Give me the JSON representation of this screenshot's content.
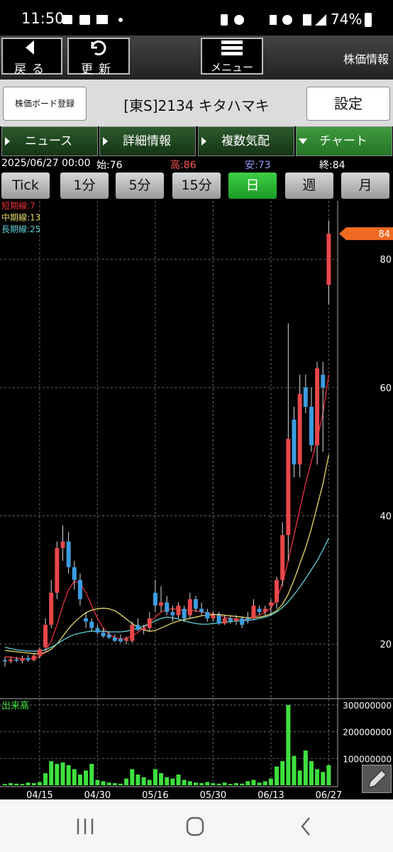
{
  "status_bar": {
    "time": "11:50",
    "battery": "74%"
  },
  "header": {
    "back": "戻る",
    "refresh": "更新",
    "menu": "メニュー",
    "section": "株価情報"
  },
  "stock_bar": {
    "register": "株価ボード登録",
    "name": "[東S]2134 キタハマキ",
    "settings": "設定"
  },
  "tabs": [
    "ニュース",
    "詳細情報",
    "複数気配",
    "チャート"
  ],
  "info": {
    "datetime": "2025/06/27 00:00",
    "open": "始:76",
    "high": "高:86",
    "low": "安:73",
    "close": "終:84"
  },
  "timeframes": [
    "Tick",
    "1分",
    "5分",
    "15分",
    "日",
    "週",
    "月"
  ],
  "chart_data": {
    "type": "candlestick",
    "categories": [
      null,
      null,
      null,
      null,
      null,
      null,
      "04/15",
      null,
      null,
      null,
      null,
      null,
      null,
      null,
      null,
      null,
      "04/30",
      null,
      null,
      null,
      null,
      null,
      null,
      null,
      null,
      null,
      "05/16",
      null,
      null,
      null,
      null,
      null,
      null,
      null,
      null,
      null,
      "05/30",
      null,
      null,
      null,
      null,
      null,
      null,
      null,
      null,
      null,
      "06/13",
      null,
      null,
      null,
      null,
      null,
      null,
      null,
      null,
      null,
      "06/27"
    ],
    "open": [
      17.5,
      17.3,
      17.6,
      17.4,
      17.8,
      17.5,
      18.2,
      19.5,
      23,
      28,
      35,
      36,
      32,
      30,
      24,
      23.5,
      22.5,
      21.8,
      21.5,
      21,
      20.8,
      20.5,
      20.5,
      23,
      22.2,
      22.5,
      28,
      26,
      26.5,
      25,
      24.5,
      25.5,
      24.5,
      27,
      25.5,
      25,
      24,
      24.5,
      23.2,
      24,
      23.6,
      24,
      24,
      24,
      25.5,
      25,
      26,
      26.5,
      30,
      37,
      55,
      48,
      60,
      57,
      51,
      62,
      76
    ],
    "high": [
      18,
      18,
      18,
      18.2,
      18.3,
      18.5,
      19.5,
      24,
      30,
      36,
      38.5,
      37.5,
      33,
      31,
      25,
      24,
      23,
      22.5,
      22,
      21.5,
      21.5,
      21.2,
      23.5,
      24,
      23,
      25,
      30,
      29,
      27.5,
      26,
      26.5,
      26,
      28,
      27.5,
      26.5,
      25.5,
      25,
      25,
      24.5,
      24.5,
      24.5,
      24.3,
      25,
      27,
      26,
      26,
      27,
      30.5,
      39,
      70,
      57,
      62,
      62,
      60,
      64,
      64,
      86
    ],
    "low": [
      16.5,
      17,
      17.2,
      17,
      17.2,
      17.3,
      17.8,
      19,
      22.5,
      27,
      33,
      31,
      28.5,
      26,
      22.5,
      22,
      21.5,
      21,
      20.8,
      20.3,
      20.2,
      20,
      20.2,
      22,
      21.5,
      22,
      25,
      25,
      24.5,
      23.5,
      24,
      23.5,
      24,
      25,
      24.5,
      23.5,
      23.5,
      23,
      23,
      23.2,
      23,
      22.5,
      23.2,
      23.8,
      24.5,
      24.5,
      24.5,
      25.5,
      29,
      33,
      46,
      46,
      56,
      50,
      48,
      50,
      73
    ],
    "close": [
      17.3,
      17.6,
      17.4,
      17.8,
      17.5,
      18.2,
      19.2,
      23,
      28,
      35,
      36,
      32,
      30,
      27,
      23.5,
      22.5,
      21.8,
      21.2,
      21,
      20.5,
      20.4,
      20.8,
      23,
      22.2,
      22.5,
      24,
      26,
      26.5,
      25,
      24.5,
      26,
      24,
      27,
      25.5,
      25,
      24,
      24.5,
      23.2,
      24,
      23.6,
      24,
      23,
      23.7,
      26,
      25,
      25.5,
      26.5,
      30,
      37,
      52,
      48,
      59,
      57,
      51,
      63,
      60,
      84
    ],
    "up_color": "#e8474a",
    "down_color": "#3b9ce0",
    "ylim": [
      11.6,
      89.1
    ],
    "yticks": [
      20,
      40,
      60,
      80
    ],
    "grid": true,
    "current_price": 84,
    "moving_averages": [
      {
        "name": "短期線:7",
        "color": "#e8323c",
        "values": [
          18,
          18,
          17.8,
          17.7,
          17.7,
          17.8,
          18,
          18.8,
          20.5,
          23,
          26,
          28.5,
          29.8,
          29.5,
          28,
          26,
          24,
          22.5,
          21.5,
          21,
          20.8,
          20.9,
          21.3,
          21.8,
          22.5,
          23.3,
          24.2,
          25,
          25.4,
          25.5,
          25.4,
          25.2,
          25.3,
          25.2,
          25,
          24.8,
          24.7,
          24.5,
          24.2,
          24,
          23.9,
          23.8,
          23.8,
          24.2,
          24.5,
          25,
          25.6,
          27,
          29.5,
          33,
          37,
          41,
          45,
          48.5,
          52,
          56,
          62
        ]
      },
      {
        "name": "中期線:13",
        "color": "#e6d96a",
        "values": [
          19,
          18.9,
          18.8,
          18.7,
          18.6,
          18.5,
          18.5,
          18.7,
          19.2,
          20,
          21.2,
          22.4,
          23.4,
          24.2,
          24.9,
          25.3,
          25.5,
          25.6,
          25.5,
          25.2,
          24.6,
          23.9,
          23.2,
          22.6,
          22.2,
          22,
          22.1,
          22.5,
          22.9,
          23.3,
          23.6,
          23.8,
          24,
          24.2,
          24.4,
          24.5,
          24.6,
          24.6,
          24.5,
          24.4,
          24.3,
          24.2,
          24.1,
          24.1,
          24.2,
          24.4,
          24.7,
          25.2,
          26.2,
          27.8,
          30,
          32.5,
          35,
          38,
          41.5,
          45,
          49.5
        ]
      },
      {
        "name": "長期線:25",
        "color": "#5fd0d8",
        "values": [
          19.5,
          19.3,
          19.1,
          19,
          18.9,
          18.9,
          18.9,
          19.1,
          19.5,
          20,
          20.6,
          21.1,
          21.5,
          21.7,
          21.9,
          22,
          22,
          22,
          21.9,
          21.9,
          21.9,
          22,
          22.2,
          22.5,
          22.8,
          23.2,
          23.6,
          24,
          24.2,
          24.1,
          23.9,
          23.6,
          23.4,
          23.2,
          23.1,
          23.1,
          23.2,
          23.3,
          23.4,
          23.5,
          23.6,
          23.6,
          23.7,
          23.8,
          24,
          24.2,
          24.5,
          25,
          25.7,
          26.6,
          27.7,
          28.9,
          30.2,
          31.6,
          33,
          34.7,
          36.5
        ]
      }
    ],
    "volume": {
      "label": "出来高",
      "color": "#3ee03e",
      "values": [
        5000000,
        8000000,
        6000000,
        5000000,
        10000000,
        8000000,
        12000000,
        45000000,
        90000000,
        80000000,
        85000000,
        75000000,
        60000000,
        40000000,
        55000000,
        80000000,
        20000000,
        15000000,
        10000000,
        8000000,
        6000000,
        25000000,
        60000000,
        40000000,
        30000000,
        20000000,
        60000000,
        45000000,
        30000000,
        25000000,
        40000000,
        20000000,
        15000000,
        10000000,
        8000000,
        12000000,
        8000000,
        6000000,
        10000000,
        5000000,
        8000000,
        6000000,
        15000000,
        20000000,
        10000000,
        15000000,
        25000000,
        70000000,
        90000000,
        300000000,
        110000000,
        55000000,
        130000000,
        90000000,
        60000000,
        50000000,
        75000000
      ],
      "ylim": [
        0,
        321000000
      ],
      "yticks": [
        100000000,
        200000000,
        300000000
      ]
    }
  }
}
